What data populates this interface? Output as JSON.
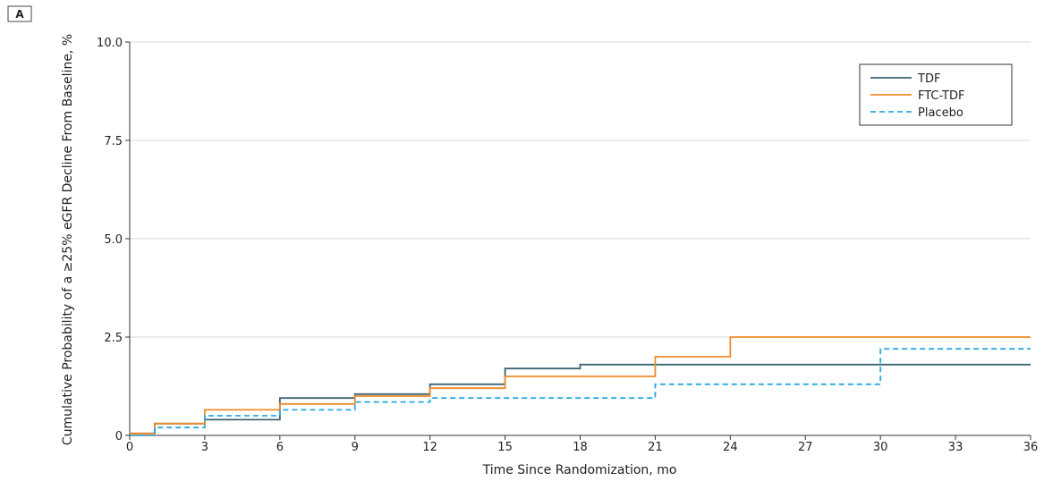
{
  "panel_label": "A",
  "chart_data": {
    "type": "line",
    "step": true,
    "xlabel": "Time Since Randomization, mo",
    "ylabel": "Cumulative Probability of a ≥25% eGFR Decline From Baseline, %",
    "xlim": [
      0,
      36
    ],
    "ylim": [
      0,
      10
    ],
    "xticks": [
      0,
      3,
      6,
      9,
      12,
      15,
      18,
      21,
      24,
      27,
      30,
      33,
      36
    ],
    "yticks": [
      0,
      2.5,
      5,
      7.5,
      10
    ],
    "yticklabels": [
      "0",
      "2.5",
      "5.0",
      "7.5",
      "10.0"
    ],
    "grid": "horizontal",
    "legend_position": "top-right",
    "series": [
      {
        "name": "TDF",
        "color": "#3d6373",
        "dash": "solid",
        "x": [
          0,
          1,
          3,
          6,
          9,
          12,
          15,
          18,
          36
        ],
        "y": [
          0.05,
          0.3,
          0.4,
          0.95,
          1.05,
          1.3,
          1.7,
          1.8,
          1.8
        ]
      },
      {
        "name": "FTC-TDF",
        "color": "#ee8c2a",
        "dash": "solid",
        "x": [
          0,
          1,
          3,
          6,
          9,
          12,
          15,
          21,
          24,
          36
        ],
        "y": [
          0.05,
          0.3,
          0.65,
          0.8,
          1.0,
          1.2,
          1.5,
          2.0,
          2.5,
          2.5
        ]
      },
      {
        "name": "Placebo",
        "color": "#29a9e0",
        "dash": "dashed",
        "x": [
          0,
          1,
          3,
          6,
          9,
          12,
          21,
          30,
          36
        ],
        "y": [
          0.0,
          0.2,
          0.5,
          0.65,
          0.85,
          0.95,
          1.3,
          2.2,
          2.2
        ]
      }
    ]
  }
}
